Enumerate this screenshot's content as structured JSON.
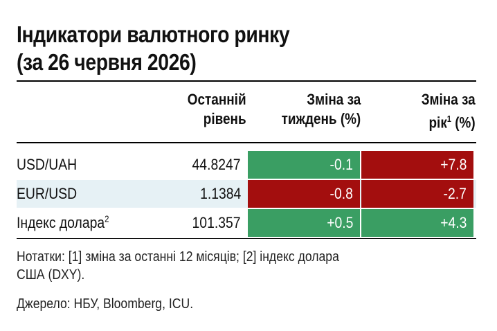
{
  "title": {
    "line1": "Індикатори валютного ринку",
    "line2": "(за 26 червня 2026)"
  },
  "headers": {
    "last_level": [
      "Останній",
      "рівень"
    ],
    "weekly_change": [
      "Зміна за",
      "тиждень (%)"
    ],
    "yearly_change": [
      "Зміна за",
      "рік",
      "1",
      " (%)"
    ]
  },
  "rows": [
    {
      "name": "USD/UAH",
      "sup": "",
      "level": "44.8247",
      "week": "-0.1",
      "year": "+7.8",
      "week_color": "#3a9e63",
      "year_color": "#a30e0e"
    },
    {
      "name": "EUR/USD",
      "sup": "",
      "level": "1.1384",
      "week": "-0.8",
      "year": "-2.7",
      "week_color": "#a30e0e",
      "year_color": "#a30e0e"
    },
    {
      "name": "Індекс долара",
      "sup": "2",
      "level": "101.357",
      "week": "+0.5",
      "year": "+4.3",
      "week_color": "#3a9e63",
      "year_color": "#3a9e63"
    }
  ],
  "notes": {
    "footnotes_line1": "Нотатки: [1] зміна за останні 12 місяців; [2] індекс долара",
    "footnotes_line2": "США (DXY).",
    "source": "Джерело: НБУ, Bloomberg, ICU."
  },
  "colors": {
    "positive": "#3a9e63",
    "negative": "#a30e0e",
    "row_shade": "#e6f1f5"
  }
}
